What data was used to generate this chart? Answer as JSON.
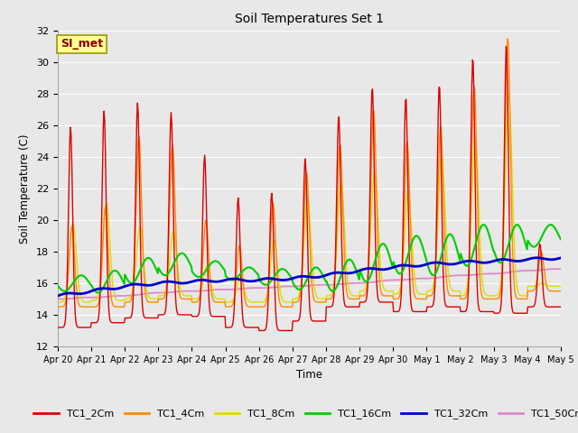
{
  "title": "Soil Temperatures Set 1",
  "xlabel": "Time",
  "ylabel": "Soil Temperature (C)",
  "ylim": [
    12,
    32
  ],
  "xlim": [
    0,
    15
  ],
  "annotation": "SI_met",
  "series_colors": {
    "TC1_2Cm": "#dd0000",
    "TC1_4Cm": "#ff8800",
    "TC1_8Cm": "#dddd00",
    "TC1_16Cm": "#00cc00",
    "TC1_32Cm": "#0000cc",
    "TC1_50Cm": "#dd88cc"
  },
  "tick_labels": [
    "Apr 20",
    "Apr 21",
    "Apr 22",
    "Apr 23",
    "Apr 24",
    "Apr 25",
    "Apr 26",
    "Apr 27",
    "Apr 28",
    "Apr 29",
    "Apr 30",
    "May 1",
    "May 2",
    "May 3",
    "May 4",
    "May 5"
  ],
  "background_color": "#e8e8e8",
  "grid_color": "#ffffff",
  "day_peaks_2cm": [
    25.9,
    26.9,
    27.4,
    26.8,
    24.1,
    21.4,
    21.7,
    23.9,
    26.6,
    28.4,
    27.8,
    28.6,
    30.3,
    31.1,
    18.5
  ],
  "day_mins_2cm": [
    13.2,
    13.5,
    13.8,
    14.0,
    13.9,
    13.2,
    13.0,
    13.6,
    14.5,
    14.8,
    14.2,
    14.5,
    14.2,
    14.1,
    14.5
  ],
  "day_peaks_4cm": [
    19.6,
    20.8,
    25.3,
    24.8,
    20.0,
    18.4,
    21.1,
    23.0,
    24.8,
    27.0,
    25.0,
    26.0,
    28.5,
    31.5,
    18.0
  ],
  "day_mins_4cm": [
    14.5,
    14.5,
    14.8,
    15.0,
    14.8,
    14.5,
    14.5,
    14.8,
    15.0,
    15.2,
    15.0,
    15.2,
    15.0,
    15.0,
    15.5
  ],
  "day_peaks_8cm": [
    19.8,
    21.1,
    19.6,
    19.3,
    17.1,
    16.4,
    18.7,
    21.3,
    22.3,
    23.0,
    21.8,
    24.0,
    25.2,
    28.0,
    16.0
  ],
  "day_mins_8cm": [
    14.8,
    14.9,
    15.0,
    15.2,
    15.0,
    14.8,
    14.8,
    15.0,
    15.2,
    15.5,
    15.3,
    15.5,
    15.2,
    15.2,
    15.8
  ],
  "tc1_16cm_base": [
    16.0,
    16.1,
    16.8,
    17.2,
    16.9,
    16.6,
    16.4,
    16.3,
    16.5,
    17.3,
    17.8,
    17.8,
    18.4,
    18.5,
    19.0,
    18.5
  ],
  "tc1_16cm_amp": [
    0.5,
    0.7,
    0.8,
    0.7,
    0.5,
    0.4,
    0.5,
    0.7,
    1.0,
    1.2,
    1.2,
    1.3,
    1.3,
    1.2,
    0.7
  ],
  "tc1_32cm_vals": [
    15.2,
    15.5,
    15.8,
    16.0,
    16.1,
    16.2,
    16.2,
    16.3,
    16.5,
    16.8,
    17.0,
    17.2,
    17.3,
    17.4,
    17.5,
    17.6
  ],
  "tc1_50cm_vals": [
    15.0,
    15.1,
    15.2,
    15.4,
    15.5,
    15.6,
    15.7,
    15.8,
    15.9,
    16.0,
    16.2,
    16.3,
    16.5,
    16.6,
    16.8,
    16.9
  ]
}
